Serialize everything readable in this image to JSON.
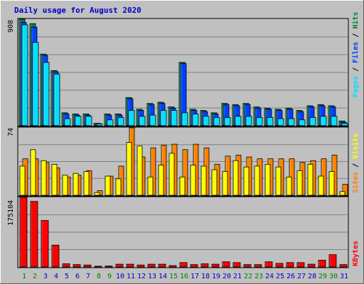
{
  "chart_data": [
    {
      "type": "bar",
      "title": "Daily usage for August 2020",
      "categories": [
        "1",
        "2",
        "3",
        "4",
        "5",
        "6",
        "7",
        "8",
        "9",
        "10",
        "11",
        "12",
        "13",
        "14",
        "15",
        "16",
        "17",
        "18",
        "19",
        "20",
        "21",
        "22",
        "23",
        "24",
        "25",
        "26",
        "27",
        "28",
        "29",
        "30",
        "31"
      ],
      "weekend_days": [
        "1",
        "2",
        "8",
        "9",
        "15",
        "16",
        "22",
        "23",
        "29",
        "30"
      ],
      "ylim": [
        0,
        908
      ],
      "max_label": "908",
      "right_label_parts": [
        "Pages",
        "Files",
        "Hits"
      ],
      "right_label_separator": " / ",
      "series": [
        {
          "name": "Hits",
          "values": [
            908,
            870,
            610,
            470,
            110,
            100,
            100,
            20,
            100,
            100,
            240,
            140,
            190,
            200,
            160,
            540,
            140,
            130,
            110,
            190,
            180,
            190,
            160,
            150,
            140,
            150,
            130,
            170,
            180,
            170,
            40
          ]
        },
        {
          "name": "Files",
          "values": [
            880,
            840,
            600,
            460,
            100,
            90,
            90,
            18,
            90,
            90,
            230,
            130,
            180,
            190,
            150,
            530,
            130,
            120,
            100,
            180,
            170,
            180,
            150,
            140,
            130,
            140,
            120,
            160,
            170,
            160,
            30
          ]
        },
        {
          "name": "Pages",
          "values": [
            860,
            710,
            540,
            440,
            60,
            80,
            80,
            15,
            50,
            70,
            130,
            80,
            90,
            130,
            130,
            110,
            100,
            80,
            70,
            70,
            80,
            80,
            70,
            70,
            60,
            60,
            50,
            70,
            80,
            80,
            20
          ]
        }
      ]
    },
    {
      "type": "bar",
      "categories": [
        "1",
        "2",
        "3",
        "4",
        "5",
        "6",
        "7",
        "8",
        "9",
        "10",
        "11",
        "12",
        "13",
        "14",
        "15",
        "16",
        "17",
        "18",
        "19",
        "20",
        "21",
        "22",
        "23",
        "24",
        "25",
        "26",
        "27",
        "28",
        "29",
        "30",
        "31"
      ],
      "ylim": [
        0,
        74
      ],
      "max_label": "74",
      "right_label_parts": [
        "Sites",
        "Visits"
      ],
      "right_label_separator": " / ",
      "series": [
        {
          "name": "Visits",
          "values": [
            32,
            50,
            38,
            34,
            22,
            24,
            26,
            3,
            21,
            18,
            58,
            54,
            20,
            33,
            46,
            20,
            33,
            32,
            28,
            26,
            38,
            31,
            32,
            34,
            31,
            20,
            27,
            34,
            21,
            26,
            4
          ]
        },
        {
          "name": "Sites",
          "values": [
            40,
            40,
            36,
            30,
            20,
            22,
            27,
            5,
            21,
            32,
            74,
            42,
            52,
            55,
            56,
            50,
            56,
            52,
            34,
            43,
            44,
            42,
            40,
            40,
            40,
            40,
            36,
            38,
            40,
            44,
            12
          ]
        }
      ]
    },
    {
      "type": "bar",
      "categories": [
        "1",
        "2",
        "3",
        "4",
        "5",
        "6",
        "7",
        "8",
        "9",
        "10",
        "11",
        "12",
        "13",
        "14",
        "15",
        "16",
        "17",
        "18",
        "19",
        "20",
        "21",
        "22",
        "23",
        "24",
        "25",
        "26",
        "27",
        "28",
        "29",
        "30",
        "31"
      ],
      "ylim": [
        0,
        175104
      ],
      "max_label": "175104",
      "right_label_parts": [
        "KBytes"
      ],
      "right_label_separator": "",
      "series": [
        {
          "name": "KBytes",
          "values": [
            175104,
            165000,
            117000,
            55000,
            8000,
            6000,
            5000,
            2000,
            2500,
            7000,
            7000,
            5000,
            7000,
            7000,
            3500,
            11000,
            6000,
            8000,
            7000,
            13000,
            11000,
            6000,
            6000,
            13000,
            9000,
            11000,
            11000,
            7000,
            17000,
            31000,
            6000
          ]
        }
      ]
    }
  ],
  "colors": {
    "title": "#0000cc",
    "background": "#c0c0c0",
    "plot_background": "#c0c0c0",
    "gridline": "#808080",
    "hits": "#008040",
    "files": "#0040ff",
    "pages": "#00e0ff",
    "visits": "#ffff00",
    "sites": "#ff8000",
    "kbytes": "#ff0000",
    "weekday_label": "#0000cc",
    "weekend_label": "#008000",
    "axis_label": "#000000"
  }
}
